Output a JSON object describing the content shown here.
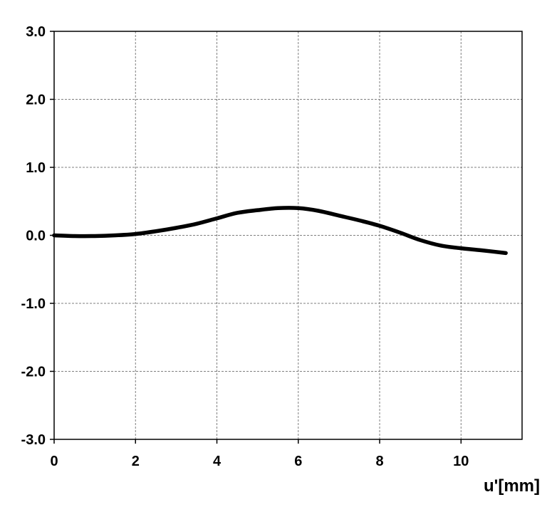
{
  "chart_data": {
    "type": "line",
    "title": "",
    "xlabel": "u'[mm]",
    "ylabel": "",
    "xlim": [
      0,
      11.5
    ],
    "ylim": [
      -3.0,
      3.0
    ],
    "x_ticks": [
      0,
      2,
      4,
      6,
      8,
      10
    ],
    "x_tick_labels": [
      "0",
      "2",
      "4",
      "6",
      "8",
      "10"
    ],
    "y_ticks": [
      3.0,
      2.0,
      1.0,
      0.0,
      -1.0,
      -2.0,
      -3.0
    ],
    "y_tick_labels": [
      "3.0",
      "2.0",
      "1.0",
      "0.0",
      "-1.0",
      "-2.0",
      "-3.0"
    ],
    "grid": true,
    "series": [
      {
        "color": "#000000",
        "x": [
          0,
          0.5,
          1,
          1.5,
          2,
          2.5,
          3,
          3.5,
          4,
          4.5,
          5,
          5.5,
          6,
          6.5,
          7,
          7.5,
          8,
          8.5,
          9,
          9.5,
          10,
          10.5,
          11.1
        ],
        "y": [
          0.0,
          -0.01,
          -0.01,
          0.0,
          0.02,
          0.06,
          0.11,
          0.17,
          0.25,
          0.33,
          0.37,
          0.4,
          0.4,
          0.36,
          0.29,
          0.22,
          0.14,
          0.04,
          -0.07,
          -0.15,
          -0.19,
          -0.22,
          -0.26
        ]
      }
    ]
  }
}
